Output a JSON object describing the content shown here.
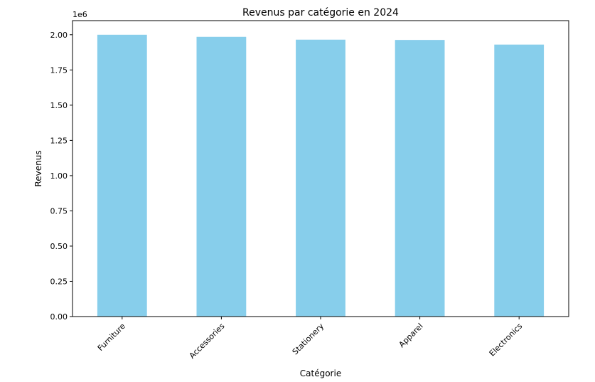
{
  "chart_data": {
    "type": "bar",
    "title": "Revenus par catégorie en 2024",
    "xlabel": "Catégorie",
    "ylabel": "Revenus",
    "y_offset_label": "1e6",
    "categories": [
      "Furniture",
      "Accessories",
      "Stationery",
      "Apparel",
      "Electronics"
    ],
    "values": [
      2.0,
      1.985,
      1.965,
      1.963,
      1.93
    ],
    "ylim": [
      0,
      2.1
    ],
    "yticks": [
      0.0,
      0.25,
      0.5,
      0.75,
      1.0,
      1.25,
      1.5,
      1.75,
      2.0
    ],
    "ytick_labels": [
      "0.00",
      "0.25",
      "0.50",
      "0.75",
      "1.00",
      "1.25",
      "1.50",
      "1.75",
      "2.00"
    ],
    "bar_color": "#87ceeb",
    "grid": false,
    "legend": "none"
  }
}
